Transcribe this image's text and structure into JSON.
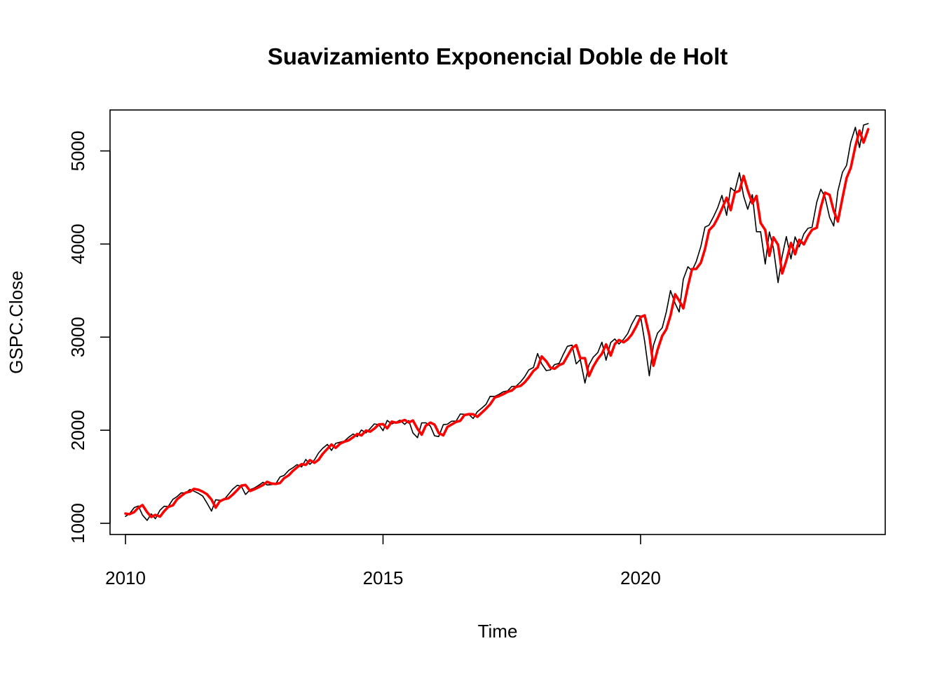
{
  "chart_data": {
    "type": "line",
    "title": "Suavizamiento Exponencial Doble de Holt",
    "xlabel": "Time",
    "ylabel": "GSPC.Close",
    "xlim": [
      2009.7,
      2024.75
    ],
    "ylim": [
      880,
      5440
    ],
    "x_ticks": [
      2010,
      2015,
      2020
    ],
    "x_tick_labels": [
      "2010",
      "2015",
      "2020"
    ],
    "y_ticks": [
      1000,
      2000,
      3000,
      4000,
      5000
    ],
    "y_tick_labels": [
      "1000",
      "2000",
      "3000",
      "4000",
      "5000"
    ],
    "grid": false,
    "legend": "none",
    "colors": {
      "observed": "#000000",
      "fitted": "#ff0000"
    },
    "series": [
      {
        "key": "observed",
        "x": [
          2010.0,
          2010.08,
          2010.17,
          2010.25,
          2010.33,
          2010.42,
          2010.5,
          2010.58,
          2010.67,
          2010.75,
          2010.83,
          2010.92,
          2011.0,
          2011.08,
          2011.17,
          2011.25,
          2011.33,
          2011.42,
          2011.5,
          2011.58,
          2011.67,
          2011.75,
          2011.83,
          2011.92,
          2012.0,
          2012.08,
          2012.17,
          2012.25,
          2012.33,
          2012.42,
          2012.5,
          2012.58,
          2012.67,
          2012.75,
          2012.83,
          2012.92,
          2013.0,
          2013.08,
          2013.17,
          2013.25,
          2013.33,
          2013.42,
          2013.5,
          2013.58,
          2013.67,
          2013.75,
          2013.83,
          2013.92,
          2014.0,
          2014.08,
          2014.17,
          2014.25,
          2014.33,
          2014.42,
          2014.5,
          2014.58,
          2014.67,
          2014.75,
          2014.83,
          2014.92,
          2015.0,
          2015.08,
          2015.17,
          2015.25,
          2015.33,
          2015.42,
          2015.5,
          2015.58,
          2015.67,
          2015.75,
          2015.83,
          2015.92,
          2016.0,
          2016.08,
          2016.17,
          2016.25,
          2016.33,
          2016.42,
          2016.5,
          2016.58,
          2016.67,
          2016.75,
          2016.83,
          2016.92,
          2017.0,
          2017.08,
          2017.17,
          2017.25,
          2017.33,
          2017.42,
          2017.5,
          2017.58,
          2017.67,
          2017.75,
          2017.83,
          2017.92,
          2018.0,
          2018.08,
          2018.17,
          2018.25,
          2018.33,
          2018.42,
          2018.5,
          2018.58,
          2018.67,
          2018.75,
          2018.83,
          2018.92,
          2019.0,
          2019.08,
          2019.17,
          2019.25,
          2019.33,
          2019.42,
          2019.5,
          2019.58,
          2019.67,
          2019.75,
          2019.83,
          2019.92,
          2020.0,
          2020.08,
          2020.17,
          2020.25,
          2020.33,
          2020.42,
          2020.5,
          2020.58,
          2020.67,
          2020.75,
          2020.83,
          2020.92,
          2021.0,
          2021.08,
          2021.17,
          2021.25,
          2021.33,
          2021.42,
          2021.5,
          2021.58,
          2021.67,
          2021.75,
          2021.83,
          2021.92,
          2022.0,
          2022.08,
          2022.17,
          2022.25,
          2022.33,
          2022.42,
          2022.5,
          2022.58,
          2022.67,
          2022.75,
          2022.83,
          2022.92,
          2023.0,
          2023.08,
          2023.17,
          2023.25,
          2023.33,
          2023.42,
          2023.5,
          2023.58,
          2023.67,
          2023.75,
          2023.83,
          2023.92,
          2024.0,
          2024.08,
          2024.17,
          2024.25,
          2024.33,
          2024.42
        ],
        "y": [
          1074,
          1104,
          1169,
          1186,
          1089,
          1031,
          1101,
          1049,
          1141,
          1183,
          1180,
          1258,
          1286,
          1327,
          1326,
          1364,
          1345,
          1321,
          1292,
          1219,
          1131,
          1253,
          1247,
          1258,
          1312,
          1366,
          1408,
          1398,
          1310,
          1362,
          1379,
          1406,
          1441,
          1412,
          1416,
          1426,
          1498,
          1515,
          1569,
          1597,
          1631,
          1606,
          1686,
          1633,
          1682,
          1757,
          1806,
          1848,
          1783,
          1859,
          1872,
          1884,
          1924,
          1960,
          1931,
          2003,
          1972,
          2018,
          2068,
          2059,
          1995,
          2105,
          2068,
          2086,
          2107,
          2063,
          2104,
          1972,
          1920,
          2079,
          2080,
          2044,
          1940,
          1932,
          2060,
          2065,
          2097,
          2099,
          2174,
          2171,
          2168,
          2126,
          2199,
          2239,
          2279,
          2364,
          2363,
          2384,
          2412,
          2423,
          2470,
          2472,
          2519,
          2575,
          2648,
          2674,
          2824,
          2714,
          2641,
          2648,
          2705,
          2718,
          2816,
          2902,
          2914,
          2712,
          2760,
          2507,
          2704,
          2784,
          2834,
          2946,
          2752,
          2942,
          2980,
          2926,
          2977,
          3038,
          3141,
          3231,
          3226,
          2954,
          2585,
          2912,
          3044,
          3100,
          3271,
          3500,
          3363,
          3270,
          3622,
          3756,
          3714,
          3811,
          3973,
          4181,
          4204,
          4298,
          4395,
          4523,
          4308,
          4605,
          4567,
          4766,
          4516,
          4374,
          4530,
          4132,
          4132,
          3785,
          4130,
          3955,
          3586,
          3872,
          4080,
          3840,
          4077,
          3970,
          4109,
          4169,
          4180,
          4450,
          4589,
          4508,
          4288,
          4194,
          4568,
          4770,
          4846,
          5096,
          5254,
          5036,
          5278,
          5294
        ]
      },
      {
        "key": "fitted",
        "x": [
          2010.0,
          2010.08,
          2010.17,
          2010.25,
          2010.33,
          2010.42,
          2010.5,
          2010.58,
          2010.67,
          2010.75,
          2010.83,
          2010.92,
          2011.0,
          2011.08,
          2011.17,
          2011.25,
          2011.33,
          2011.42,
          2011.5,
          2011.58,
          2011.67,
          2011.75,
          2011.83,
          2011.92,
          2012.0,
          2012.08,
          2012.17,
          2012.25,
          2012.33,
          2012.42,
          2012.5,
          2012.58,
          2012.67,
          2012.75,
          2012.83,
          2012.92,
          2013.0,
          2013.08,
          2013.17,
          2013.25,
          2013.33,
          2013.42,
          2013.5,
          2013.58,
          2013.67,
          2013.75,
          2013.83,
          2013.92,
          2014.0,
          2014.08,
          2014.17,
          2014.25,
          2014.33,
          2014.42,
          2014.5,
          2014.58,
          2014.67,
          2014.75,
          2014.83,
          2014.92,
          2015.0,
          2015.08,
          2015.17,
          2015.25,
          2015.33,
          2015.42,
          2015.5,
          2015.58,
          2015.67,
          2015.75,
          2015.83,
          2015.92,
          2016.0,
          2016.08,
          2016.17,
          2016.25,
          2016.33,
          2016.42,
          2016.5,
          2016.58,
          2016.67,
          2016.75,
          2016.83,
          2016.92,
          2017.0,
          2017.08,
          2017.17,
          2017.25,
          2017.33,
          2017.42,
          2017.5,
          2017.58,
          2017.67,
          2017.75,
          2017.83,
          2017.92,
          2018.0,
          2018.08,
          2018.17,
          2018.25,
          2018.33,
          2018.42,
          2018.5,
          2018.58,
          2018.67,
          2018.75,
          2018.83,
          2018.92,
          2019.0,
          2019.08,
          2019.17,
          2019.25,
          2019.33,
          2019.42,
          2019.5,
          2019.58,
          2019.67,
          2019.75,
          2019.83,
          2019.92,
          2020.0,
          2020.08,
          2020.17,
          2020.25,
          2020.33,
          2020.42,
          2020.5,
          2020.58,
          2020.67,
          2020.75,
          2020.83,
          2020.92,
          2021.0,
          2021.08,
          2021.17,
          2021.25,
          2021.33,
          2021.42,
          2021.5,
          2021.58,
          2021.67,
          2021.75,
          2021.83,
          2021.92,
          2022.0,
          2022.08,
          2022.17,
          2022.25,
          2022.33,
          2022.42,
          2022.5,
          2022.58,
          2022.67,
          2022.75,
          2022.83,
          2022.92,
          2023.0,
          2023.08,
          2023.17,
          2023.25,
          2023.33,
          2023.42,
          2023.5,
          2023.58,
          2023.67,
          2023.75,
          2023.83,
          2023.92,
          2024.0,
          2024.08,
          2024.17,
          2024.25,
          2024.33,
          2024.42
        ],
        "y": [
          1105,
          1098,
          1121,
          1168,
          1196,
          1120,
          1068,
          1091,
          1072,
          1130,
          1176,
          1194,
          1256,
          1293,
          1329,
          1340,
          1370,
          1360,
          1340,
          1313,
          1255,
          1168,
          1236,
          1260,
          1269,
          1307,
          1357,
          1405,
          1412,
          1347,
          1365,
          1386,
          1412,
          1446,
          1428,
          1423,
          1433,
          1485,
          1516,
          1563,
          1601,
          1636,
          1627,
          1679,
          1650,
          1683,
          1747,
          1800,
          1847,
          1810,
          1857,
          1877,
          1891,
          1925,
          1960,
          1944,
          1997,
          1985,
          2017,
          2063,
          2066,
          2020,
          2093,
          2081,
          2091,
          2110,
          2083,
          2105,
          2015,
          1952,
          2049,
          2082,
          2061,
          1970,
          1945,
          2035,
          2061,
          2090,
          2101,
          2163,
          2173,
          2172,
          2144,
          2190,
          2232,
          2277,
          2352,
          2366,
          2386,
          2413,
          2426,
          2465,
          2476,
          2514,
          2568,
          2637,
          2674,
          2793,
          2741,
          2672,
          2660,
          2699,
          2718,
          2796,
          2884,
          2914,
          2775,
          2774,
          2582,
          2682,
          2766,
          2822,
          2922,
          2802,
          2925,
          2970,
          2945,
          2976,
          3028,
          3120,
          3216,
          3234,
          3019,
          2693,
          2864,
          3014,
          3085,
          3231,
          3460,
          3393,
          3310,
          3546,
          3732,
          3733,
          3798,
          3945,
          4148,
          4200,
          4282,
          4378,
          4497,
          4364,
          4553,
          4572,
          4732,
          4578,
          4437,
          4517,
          4226,
          4152,
          3874,
          4072,
          3992,
          3684,
          3823,
          4012,
          3890,
          4046,
          3996,
          4086,
          4153,
          4175,
          4393,
          4552,
          4529,
          4358,
          4242,
          4495,
          4710,
          4818,
          5050,
          5218,
          5089,
          5234
        ]
      }
    ]
  }
}
